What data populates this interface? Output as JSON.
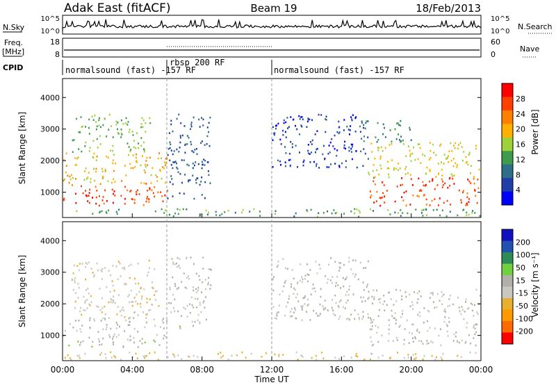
{
  "header": {
    "radar": "Adak East (fitACF)",
    "beam": "Beam 19",
    "date": "18/Feb/2013"
  },
  "top_panels": {
    "nsky": {
      "label": "N.Sky",
      "tick_top": "10^5",
      "tick_bottom": "10^0"
    },
    "nsearch": {
      "label": "N.Search",
      "tick_top": "10^5",
      "tick_bottom": "10^0"
    },
    "freq": {
      "label_line1": "Freq.",
      "label_line2": "[MHz]",
      "tick_top": "18",
      "tick_bottom": "8"
    },
    "nave": {
      "label": "Nave",
      "tick_top": "60",
      "tick_bottom": "0"
    },
    "cpid": {
      "label": "CPID",
      "segments": [
        {
          "start_hour": 0,
          "end_hour": 6,
          "text": "normalsound (fast) -157 RF"
        },
        {
          "start_hour": 6,
          "end_hour": 12,
          "text": "rbsp 200 RF"
        },
        {
          "start_hour": 12,
          "end_hour": 24,
          "text": "normalsound (fast) -157 RF"
        }
      ]
    }
  },
  "panels": {
    "power": {
      "ylabel": "Slant Range [km]",
      "cbar_label": "Power [dB]",
      "cbar_ticks": [
        "4",
        "8",
        "12",
        "16",
        "20",
        "24",
        "28"
      ]
    },
    "velocity": {
      "ylabel": "Slant Range [km]",
      "cbar_label": "Velocity [m s⁻¹]",
      "cbar_ticks": [
        "200",
        "100",
        "50",
        "15",
        "-15",
        "-50",
        "-100",
        "-200"
      ]
    }
  },
  "xaxis": {
    "label": "Time UT",
    "ticks": [
      "00:00",
      "04:00",
      "08:00",
      "12:00",
      "16:00",
      "20:00",
      "00:00"
    ]
  },
  "colors": {
    "power_scale": [
      "#0000ff",
      "#1f3fa6",
      "#2e6e8a",
      "#3e9a4c",
      "#9fd13a",
      "#ffb000",
      "#ff8000",
      "#ff4000",
      "#ff0000"
    ],
    "velocity_scale": [
      "#ff0000",
      "#ff6a00",
      "#ff9900",
      "#e8b030",
      "#c8c8c0",
      "#b0b0a8",
      "#70d040",
      "#2e8b57",
      "#2050b0",
      "#1010c0"
    ]
  },
  "chart_data": [
    {
      "type": "heatmap",
      "title": "Adak East (fitACF) Beam 19 18/Feb/2013",
      "xlabel": "Time UT",
      "ylabel": "Slant Range [km]",
      "x_range_hours": [
        0,
        24
      ],
      "ylim": [
        200,
        4600
      ],
      "yticks": [
        1000,
        2000,
        3000,
        4000
      ],
      "colorbar": {
        "label": "Power [dB]",
        "range": [
          0,
          32
        ],
        "ticks": [
          4,
          8,
          12,
          16,
          20,
          24,
          28
        ]
      },
      "regions": [
        {
          "t_start": 0.0,
          "t_end": 6.0,
          "r_min": 600,
          "r_max": 1300,
          "value": 28
        },
        {
          "t_start": 0.0,
          "t_end": 6.0,
          "r_min": 1300,
          "r_max": 2300,
          "value": 20
        },
        {
          "t_start": 0.5,
          "t_end": 5.0,
          "r_min": 2300,
          "r_max": 3500,
          "value": 14
        },
        {
          "t_start": 6.0,
          "t_end": 8.5,
          "r_min": 800,
          "r_max": 3500,
          "value": 6
        },
        {
          "t_start": 12.0,
          "t_end": 17.5,
          "r_min": 1800,
          "r_max": 3500,
          "value": 4
        },
        {
          "t_start": 17.5,
          "t_end": 24.0,
          "r_min": 600,
          "r_max": 1500,
          "value": 28
        },
        {
          "t_start": 17.5,
          "t_end": 24.0,
          "r_min": 1500,
          "r_max": 2600,
          "value": 18
        },
        {
          "t_start": 17.0,
          "t_end": 20.0,
          "r_min": 2600,
          "r_max": 3300,
          "value": 10
        },
        {
          "t_start": 0.0,
          "t_end": 24.0,
          "r_min": 250,
          "r_max": 500,
          "value": 12
        }
      ]
    },
    {
      "type": "heatmap",
      "xlabel": "Time UT",
      "ylabel": "Slant Range [km]",
      "x_range_hours": [
        0,
        24
      ],
      "ylim": [
        200,
        4600
      ],
      "yticks": [
        1000,
        2000,
        3000,
        4000
      ],
      "colorbar": {
        "label": "Velocity [m s⁻¹]",
        "range": [
          -250,
          250
        ],
        "ticks": [
          200,
          100,
          50,
          15,
          -15,
          -50,
          -100,
          -200
        ]
      },
      "regions": [
        {
          "t_start": 0.0,
          "t_end": 6.0,
          "r_min": 650,
          "r_max": 850,
          "value": 40
        },
        {
          "t_start": 0.0,
          "t_end": 6.0,
          "r_min": 850,
          "r_max": 1600,
          "value": 0
        },
        {
          "t_start": 0.5,
          "t_end": 5.5,
          "r_min": 1600,
          "r_max": 3400,
          "value": -40
        },
        {
          "t_start": 6.5,
          "t_end": 7.5,
          "r_min": 1200,
          "r_max": 1400,
          "value": 40
        },
        {
          "t_start": 6.0,
          "t_end": 8.5,
          "r_min": 1400,
          "r_max": 3500,
          "value": 0
        },
        {
          "t_start": 12.0,
          "t_end": 17.5,
          "r_min": 1500,
          "r_max": 3500,
          "value": 0
        },
        {
          "t_start": 17.5,
          "t_end": 24.0,
          "r_min": 700,
          "r_max": 2500,
          "value": 0
        },
        {
          "t_start": 0.0,
          "t_end": 24.0,
          "r_min": 250,
          "r_max": 500,
          "value": -60
        }
      ]
    }
  ]
}
